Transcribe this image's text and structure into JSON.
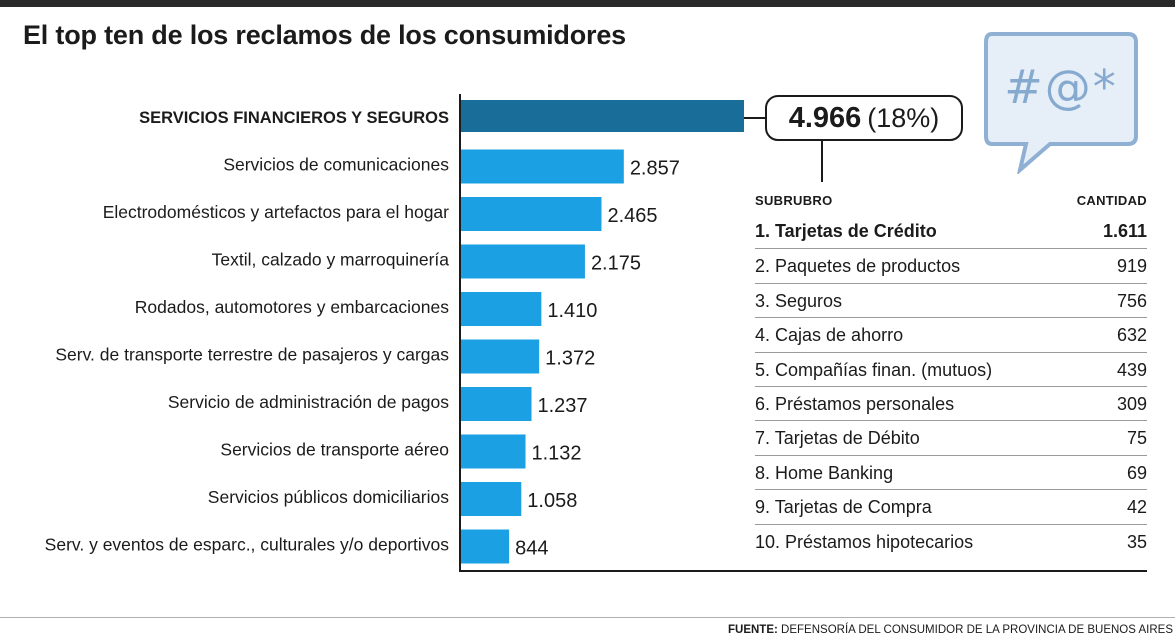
{
  "title": "El top ten de los reclamos de los consumidores",
  "callout": {
    "value": "4.966",
    "percent": "(18%)"
  },
  "bubble": {
    "text": "#@*",
    "fill": "#e6eef7",
    "stroke": "#8fb0d3"
  },
  "chart_data": {
    "type": "bar",
    "orientation": "horizontal",
    "categories": [
      "SERVICIOS FINANCIEROS Y SEGUROS",
      "Servicios de comunicaciones",
      "Electrodomésticos y artefactos para el hogar",
      "Textil, calzado y marroquinería",
      "Rodados, automotores y embarcaciones",
      "Serv. de transporte terrestre de pasajeros y cargas",
      "Servicio de administración de pagos",
      "Servicios de transporte aéreo",
      "Servicios públicos domiciliarios",
      "Serv. y eventos de esparc., culturales y/o deportivos"
    ],
    "values": [
      4966,
      2857,
      2465,
      2175,
      1410,
      1372,
      1237,
      1132,
      1058,
      844
    ],
    "value_labels": [
      "",
      "2.857",
      "2.465",
      "2.175",
      "1.410",
      "1.372",
      "1.237",
      "1.132",
      "1.058",
      "844"
    ],
    "highlight_index": 0,
    "colors": {
      "highlight": "#196e99",
      "bar": "#1aa0e3",
      "axis": "#1b1b1b"
    },
    "xlim": [
      0,
      4966
    ]
  },
  "subtable": {
    "headers": {
      "left": "SUBRUBRO",
      "right": "CANTIDAD"
    },
    "rows": [
      {
        "label": "1. Tarjetas de Crédito",
        "value": "1.611"
      },
      {
        "label": "2. Paquetes de productos",
        "value": "919"
      },
      {
        "label": "3. Seguros",
        "value": "756"
      },
      {
        "label": "4. Cajas de ahorro",
        "value": "632"
      },
      {
        "label": "5. Compañías finan. (mutuos)",
        "value": "439"
      },
      {
        "label": "6. Préstamos personales",
        "value": "309"
      },
      {
        "label": "7. Tarjetas de Débito",
        "value": "75"
      },
      {
        "label": "8. Home Banking",
        "value": "69"
      },
      {
        "label": "9. Tarjetas de Compra",
        "value": "42"
      },
      {
        "label": "10. Préstamos hipotecarios",
        "value": "35"
      }
    ]
  },
  "source": {
    "label": "FUENTE:",
    "text": "DEFENSORÍA DEL CONSUMIDOR DE LA PROVINCIA DE BUENOS AIRES"
  }
}
